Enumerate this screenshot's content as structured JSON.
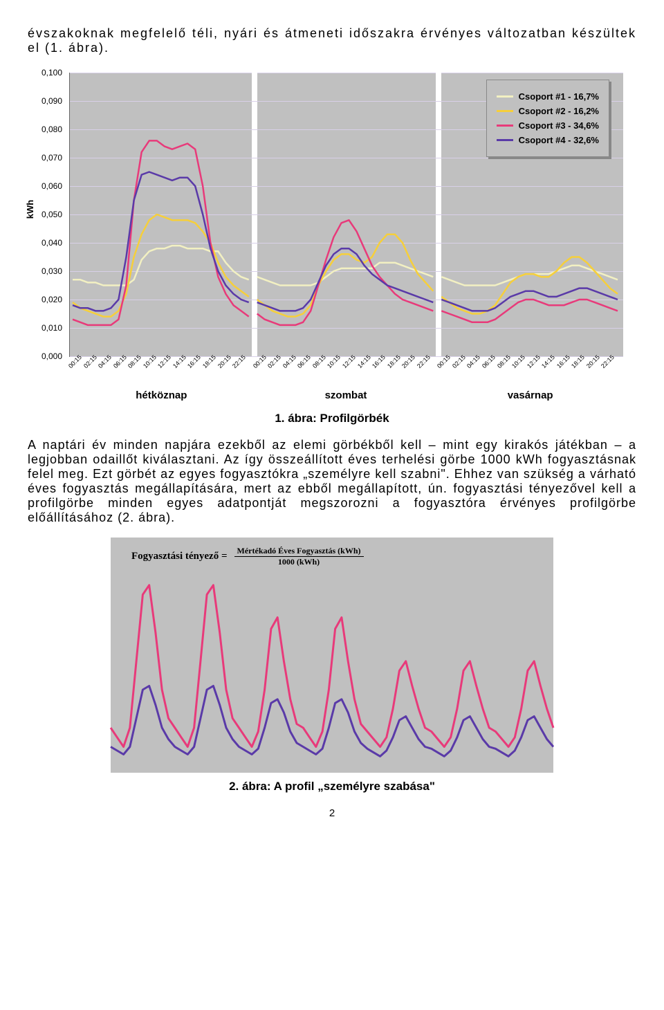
{
  "intro": "évszakoknak megfelelő téli, nyári és átmeneti időszakra érvényes változatban készültek el (1. ábra).",
  "chart": {
    "type": "line",
    "y_label": "kWh",
    "y_ticks": [
      "0,000",
      "0,010",
      "0,020",
      "0,030",
      "0,040",
      "0,050",
      "0,060",
      "0,070",
      "0,080",
      "0,090",
      "0,100"
    ],
    "ylim": [
      0,
      0.1
    ],
    "background_color": "#c0c0c0",
    "grid_color": "#d8d0e8",
    "x_times": [
      "00:15",
      "02:15",
      "04:15",
      "06:15",
      "08:15",
      "10:15",
      "12:15",
      "14:15",
      "16:15",
      "18:15",
      "20:15",
      "22:15"
    ],
    "days": [
      "hétköznap",
      "szombat",
      "vasárnap"
    ],
    "legend": [
      {
        "label": "Csoport #1 - 16,7%",
        "color": "#f2f0c2"
      },
      {
        "label": "Csoport #2 - 16,2%",
        "color": "#f6cf3a"
      },
      {
        "label": "Csoport #3 - 34,6%",
        "color": "#e83a7a"
      },
      {
        "label": "Csoport #4 - 32,6%",
        "color": "#5a3aa8"
      }
    ],
    "series": {
      "s1": [
        [
          0.027,
          0.027,
          0.026,
          0.026,
          0.025,
          0.025,
          0.025,
          0.025,
          0.027,
          0.034,
          0.037,
          0.038,
          0.038,
          0.039,
          0.039,
          0.038,
          0.038,
          0.038,
          0.037,
          0.037,
          0.033,
          0.03,
          0.028,
          0.027
        ],
        [
          0.028,
          0.027,
          0.026,
          0.025,
          0.025,
          0.025,
          0.025,
          0.025,
          0.026,
          0.028,
          0.03,
          0.031,
          0.031,
          0.031,
          0.031,
          0.031,
          0.033,
          0.033,
          0.033,
          0.032,
          0.031,
          0.03,
          0.029,
          0.028
        ],
        [
          0.028,
          0.027,
          0.026,
          0.025,
          0.025,
          0.025,
          0.025,
          0.025,
          0.026,
          0.027,
          0.028,
          0.029,
          0.029,
          0.029,
          0.029,
          0.03,
          0.031,
          0.032,
          0.032,
          0.031,
          0.03,
          0.029,
          0.028,
          0.027
        ]
      ],
      "s2": [
        [
          0.019,
          0.017,
          0.016,
          0.015,
          0.014,
          0.014,
          0.016,
          0.022,
          0.035,
          0.043,
          0.048,
          0.05,
          0.049,
          0.048,
          0.048,
          0.048,
          0.047,
          0.044,
          0.04,
          0.033,
          0.028,
          0.025,
          0.023,
          0.021
        ],
        [
          0.02,
          0.018,
          0.016,
          0.015,
          0.014,
          0.014,
          0.015,
          0.018,
          0.025,
          0.03,
          0.034,
          0.036,
          0.036,
          0.034,
          0.033,
          0.035,
          0.04,
          0.043,
          0.043,
          0.04,
          0.034,
          0.029,
          0.026,
          0.023
        ],
        [
          0.021,
          0.019,
          0.017,
          0.016,
          0.015,
          0.015,
          0.016,
          0.018,
          0.022,
          0.026,
          0.028,
          0.029,
          0.029,
          0.028,
          0.028,
          0.03,
          0.033,
          0.035,
          0.035,
          0.033,
          0.03,
          0.027,
          0.024,
          0.022
        ]
      ],
      "s3": [
        [
          0.013,
          0.012,
          0.011,
          0.011,
          0.011,
          0.011,
          0.013,
          0.025,
          0.055,
          0.072,
          0.076,
          0.076,
          0.074,
          0.073,
          0.074,
          0.075,
          0.073,
          0.06,
          0.04,
          0.028,
          0.022,
          0.018,
          0.016,
          0.014
        ],
        [
          0.015,
          0.013,
          0.012,
          0.011,
          0.011,
          0.011,
          0.012,
          0.016,
          0.025,
          0.034,
          0.042,
          0.047,
          0.048,
          0.044,
          0.038,
          0.032,
          0.028,
          0.025,
          0.022,
          0.02,
          0.019,
          0.018,
          0.017,
          0.016
        ],
        [
          0.016,
          0.015,
          0.014,
          0.013,
          0.012,
          0.012,
          0.012,
          0.013,
          0.015,
          0.017,
          0.019,
          0.02,
          0.02,
          0.019,
          0.018,
          0.018,
          0.018,
          0.019,
          0.02,
          0.02,
          0.019,
          0.018,
          0.017,
          0.016
        ]
      ],
      "s4": [
        [
          0.018,
          0.017,
          0.017,
          0.016,
          0.016,
          0.017,
          0.02,
          0.035,
          0.055,
          0.064,
          0.065,
          0.064,
          0.063,
          0.062,
          0.063,
          0.063,
          0.06,
          0.05,
          0.038,
          0.03,
          0.025,
          0.022,
          0.02,
          0.019
        ],
        [
          0.019,
          0.018,
          0.017,
          0.016,
          0.016,
          0.016,
          0.017,
          0.02,
          0.026,
          0.032,
          0.036,
          0.038,
          0.038,
          0.036,
          0.032,
          0.029,
          0.027,
          0.025,
          0.024,
          0.023,
          0.022,
          0.021,
          0.02,
          0.019
        ],
        [
          0.02,
          0.019,
          0.018,
          0.017,
          0.016,
          0.016,
          0.016,
          0.017,
          0.019,
          0.021,
          0.022,
          0.023,
          0.023,
          0.022,
          0.021,
          0.021,
          0.022,
          0.023,
          0.024,
          0.024,
          0.023,
          0.022,
          0.021,
          0.02
        ]
      ]
    }
  },
  "caption1": "1. ábra: Profilgörbék",
  "body": "A naptári év minden napjára ezekből az elemi görbékből kell – mint egy kirakós játékban – a legjobban odaillőt kiválasztani. Az így összeállított éves terhelési görbe 1000 kWh fogyasztásnak felel meg. Ezt görbét az egyes fogyasztókra „személyre kell szabni\". Ehhez van szükség a várható éves fogyasztás megállapítására, mert az ebből megállapított, ún. fogyasztási tényezővel kell a profilgörbe minden egyes adatpontját megszorozni a fogyasztóra érvényes profilgörbe előállításához (2. ábra).",
  "formula": {
    "lhs": "Fogyasztási tényező =",
    "numerator": "Mértékadó Éves Fogyasztás (kWh)",
    "denominator": "1000 (kWh)"
  },
  "fig2": {
    "background_color": "#c0c0c0",
    "colors": {
      "a": "#e83a7a",
      "b": "#5a3aa8"
    },
    "series_a": [
      0.2,
      0.15,
      0.1,
      0.2,
      0.55,
      0.9,
      0.95,
      0.7,
      0.4,
      0.25,
      0.2,
      0.15,
      0.1,
      0.2,
      0.55,
      0.9,
      0.95,
      0.7,
      0.4,
      0.25,
      0.2,
      0.15,
      0.1,
      0.18,
      0.4,
      0.72,
      0.78,
      0.55,
      0.35,
      0.22,
      0.2,
      0.15,
      0.1,
      0.18,
      0.4,
      0.72,
      0.78,
      0.55,
      0.35,
      0.22,
      0.18,
      0.14,
      0.1,
      0.15,
      0.3,
      0.5,
      0.55,
      0.42,
      0.3,
      0.2,
      0.18,
      0.14,
      0.1,
      0.15,
      0.3,
      0.5,
      0.55,
      0.42,
      0.3,
      0.2,
      0.18,
      0.14,
      0.1,
      0.15,
      0.3,
      0.5,
      0.55,
      0.42,
      0.3,
      0.2
    ],
    "series_b": [
      0.1,
      0.08,
      0.06,
      0.1,
      0.25,
      0.4,
      0.42,
      0.32,
      0.2,
      0.14,
      0.1,
      0.08,
      0.06,
      0.1,
      0.25,
      0.4,
      0.42,
      0.32,
      0.2,
      0.14,
      0.1,
      0.08,
      0.06,
      0.09,
      0.2,
      0.33,
      0.35,
      0.28,
      0.18,
      0.12,
      0.1,
      0.08,
      0.06,
      0.09,
      0.2,
      0.33,
      0.35,
      0.28,
      0.18,
      0.12,
      0.09,
      0.07,
      0.05,
      0.08,
      0.15,
      0.24,
      0.26,
      0.2,
      0.14,
      0.1,
      0.09,
      0.07,
      0.05,
      0.08,
      0.15,
      0.24,
      0.26,
      0.2,
      0.14,
      0.1,
      0.09,
      0.07,
      0.05,
      0.08,
      0.15,
      0.24,
      0.26,
      0.2,
      0.14,
      0.1
    ]
  },
  "caption2": "2. ábra: A profil „személyre szabása\"",
  "page_number": "2"
}
